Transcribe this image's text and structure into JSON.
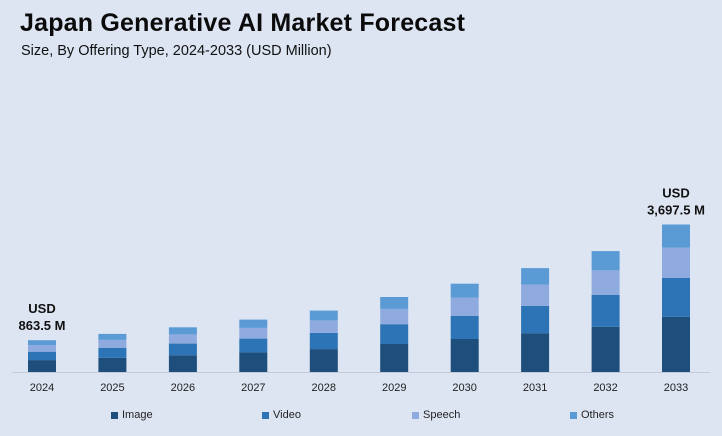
{
  "chart_data": {
    "type": "bar",
    "stacked": true,
    "title": "Japan Generative AI Market Forecast",
    "subtitle": "Size, By Offering Type, 2024-2033 (USD Million)",
    "categories": [
      "2024",
      "2025",
      "2026",
      "2027",
      "2028",
      "2029",
      "2030",
      "2031",
      "2032",
      "2033"
    ],
    "series": [
      {
        "name": "Image",
        "color": "#1d4e7c",
        "values": [
          173,
          207,
          243,
          285,
          334,
          408,
          480,
          565,
          658,
          804
        ]
      },
      {
        "name": "Video",
        "color": "#2c74b5",
        "values": [
          122,
          146,
          171,
          201,
          235,
          288,
          338,
          399,
          463,
          567
        ]
      },
      {
        "name": "Speech",
        "color": "#8faadf",
        "values": [
          95,
          113,
          133,
          156,
          183,
          223,
          263,
          309,
          360,
          438
        ]
      },
      {
        "name": "Others",
        "color": "#5b9bd5",
        "values": [
          73,
          88,
          103,
          121,
          142,
          173,
          204,
          240,
          279,
          338
        ]
      }
    ],
    "annotations": [
      {
        "category": "2024",
        "line1": "USD",
        "line2": "863.5 M"
      },
      {
        "category": "2033",
        "line1": "USD",
        "line2": "3,697.5 M"
      }
    ],
    "grid": false,
    "legend_position": "bottom"
  }
}
